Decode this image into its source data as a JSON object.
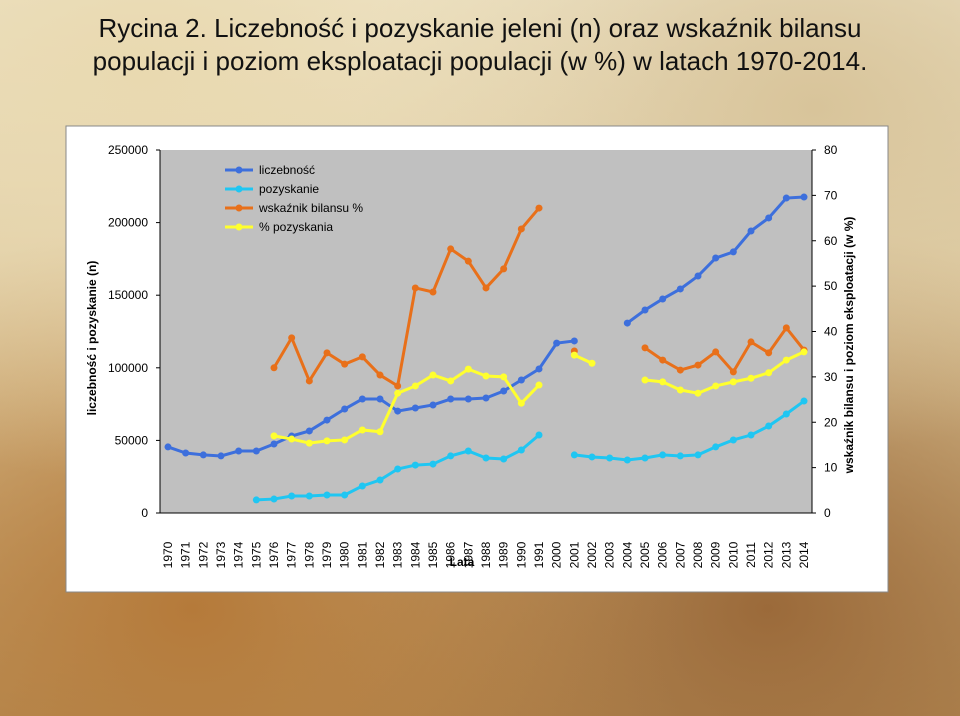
{
  "chart_data": {
    "type": "line",
    "title": "Rycina 2. Liczebność i pozyskanie jeleni (n) oraz wskaźnik bilansu populacji i poziom eksploatacji populacji (w %) w latach 1970-2014.",
    "x_label": "Lata",
    "y_label": "liczebność i pozyskanie (n)",
    "y2_label": "wskaźnik bilansu i poziom eksploatacji (w %)",
    "categories": [
      "1970",
      "1971",
      "1972",
      "1973",
      "1974",
      "1975",
      "1976",
      "1977",
      "1978",
      "1979",
      "1980",
      "1981",
      "1982",
      "1983",
      "1984",
      "1985",
      "1986",
      "1987",
      "1988",
      "1989",
      "1990",
      "1991",
      "2000",
      "2001",
      "2002",
      "2003",
      "2004",
      "2005",
      "2006",
      "2007",
      "2008",
      "2009",
      "2010",
      "2011",
      "2012",
      "2013",
      "2014"
    ],
    "ylim": [
      0,
      250000
    ],
    "yticks": [
      0,
      50000,
      100000,
      150000,
      200000,
      250000
    ],
    "y2lim": [
      0,
      80
    ],
    "y2ticks": [
      0,
      10,
      20,
      30,
      40,
      50,
      60,
      70,
      80
    ],
    "legend": "upper left",
    "series": [
      {
        "name": "liczebność",
        "color": "#3d6fdc",
        "axis": "y",
        "values": [
          45500,
          41300,
          40000,
          39300,
          42700,
          42700,
          47500,
          53000,
          56500,
          64000,
          71600,
          78500,
          78500,
          70200,
          72300,
          74400,
          78500,
          78500,
          79200,
          84000,
          91600,
          99200,
          117000,
          118500,
          null,
          null,
          130800,
          139800,
          147400,
          154300,
          163200,
          175600,
          179800,
          194200,
          203200,
          216900,
          217600
        ]
      },
      {
        "name": "pozyskanie",
        "color": "#1fc6f2",
        "axis": "y",
        "values": [
          null,
          null,
          null,
          null,
          null,
          9000,
          9600,
          11700,
          11700,
          12400,
          12400,
          18600,
          22700,
          30300,
          33000,
          33700,
          39300,
          42700,
          37900,
          37200,
          43400,
          53700,
          null,
          40000,
          38600,
          37900,
          36500,
          37900,
          40000,
          39300,
          40000,
          45500,
          50300,
          53700,
          59900,
          68200,
          77100
        ]
      },
      {
        "name": "wskaźnik bilansu %",
        "color": "#e8701a",
        "axis": "y2",
        "values": [
          null,
          null,
          null,
          null,
          null,
          null,
          32,
          38.6,
          29.1,
          35.3,
          32.8,
          34.4,
          30.4,
          28,
          49.6,
          48.7,
          58.2,
          55.5,
          49.6,
          53.8,
          62.6,
          67.2,
          null,
          35.7,
          null,
          null,
          null,
          36.4,
          33.7,
          31.5,
          32.6,
          35.5,
          31.1,
          37.7,
          35.3,
          40.8,
          35.9
        ]
      },
      {
        "name": "% pozyskania",
        "color": "#ffff2e",
        "axis": "y2",
        "values": [
          null,
          null,
          null,
          null,
          null,
          null,
          17,
          16.3,
          15.4,
          15.9,
          16.1,
          18.3,
          17.9,
          26.4,
          28,
          30.4,
          29.1,
          31.7,
          30.2,
          30,
          24.2,
          28.2,
          null,
          34.8,
          33,
          null,
          null,
          29.3,
          28.9,
          27.1,
          26.4,
          28,
          28.9,
          29.7,
          30.9,
          33.7,
          35.5
        ]
      }
    ]
  }
}
